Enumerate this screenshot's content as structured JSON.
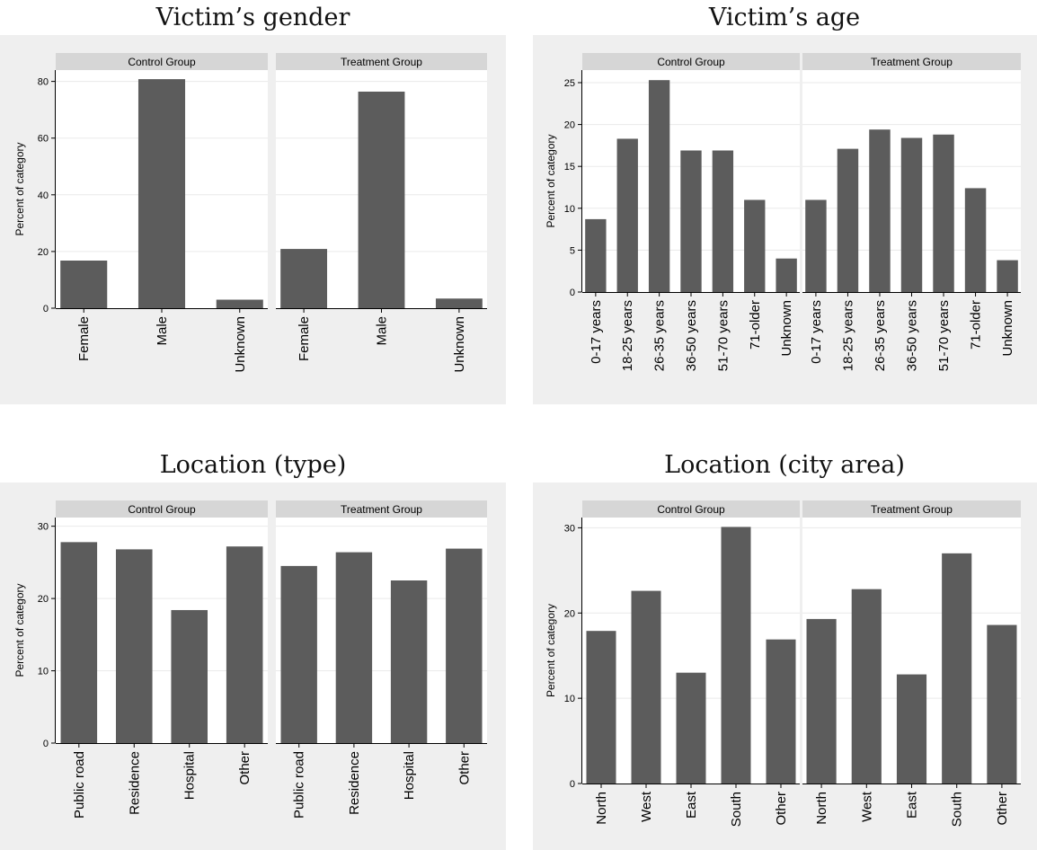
{
  "colors": {
    "background": "#efefef",
    "plot_background": "#ffffff",
    "strip": "#d6d6d6",
    "bar": "#5c5c5c",
    "grid": "#eaeaea",
    "text": "#000000"
  },
  "chart_data": [
    {
      "type": "bar",
      "title": "Victim’s gender",
      "ylabel": "Percent of category",
      "ylim": [
        0,
        84
      ],
      "yticks": [
        0,
        20,
        40,
        60,
        80
      ],
      "grid": true,
      "categories": [
        "Female",
        "Male",
        "Unknown"
      ],
      "facets": [
        {
          "name": "Control Group",
          "values": [
            16.8,
            80.8,
            3.0
          ]
        },
        {
          "name": "Treatment Group",
          "values": [
            20.9,
            76.4,
            3.4
          ]
        }
      ]
    },
    {
      "type": "bar",
      "title": "Victim’s age",
      "ylabel": "Percent of category",
      "ylim": [
        0,
        26.5
      ],
      "yticks": [
        0,
        5,
        10,
        15,
        20,
        25
      ],
      "grid": true,
      "categories": [
        "0-17 years",
        "18-25 years",
        "26-35 years",
        "36-50 years",
        "51-70 years",
        "71-older",
        "Unknown"
      ],
      "facets": [
        {
          "name": "Control Group",
          "values": [
            8.7,
            18.3,
            25.3,
            16.9,
            16.9,
            11.0,
            4.0
          ]
        },
        {
          "name": "Treatment Group",
          "values": [
            11.0,
            17.1,
            19.4,
            18.4,
            18.8,
            12.4,
            3.8
          ]
        }
      ]
    },
    {
      "type": "bar",
      "title": "Location (type)",
      "ylabel": "Percent of category",
      "ylim": [
        0,
        31.2
      ],
      "yticks": [
        0,
        10,
        20,
        30
      ],
      "grid": true,
      "categories": [
        "Public road",
        "Residence",
        "Hospital",
        "Other"
      ],
      "facets": [
        {
          "name": "Control Group",
          "values": [
            27.8,
            26.8,
            18.4,
            27.2
          ]
        },
        {
          "name": "Treatment Group",
          "values": [
            24.5,
            26.4,
            22.5,
            26.9
          ]
        }
      ]
    },
    {
      "type": "bar",
      "title": "Location (city area)",
      "ylabel": "Percent of category",
      "ylim": [
        0,
        31.2
      ],
      "yticks": [
        0,
        10,
        20,
        30
      ],
      "grid": true,
      "categories": [
        "North",
        "West",
        "East",
        "South",
        "Other"
      ],
      "facets": [
        {
          "name": "Control Group",
          "values": [
            17.9,
            22.6,
            13.0,
            30.1,
            16.9
          ]
        },
        {
          "name": "Treatment Group",
          "values": [
            19.3,
            22.8,
            12.8,
            27.0,
            18.6
          ]
        }
      ]
    }
  ]
}
